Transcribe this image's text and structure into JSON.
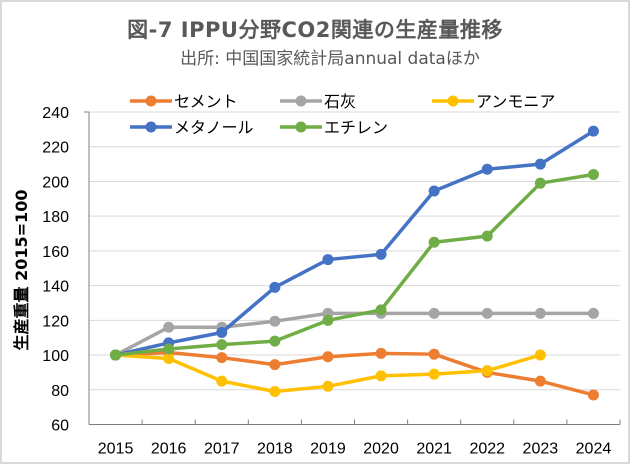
{
  "chart_data": {
    "type": "line",
    "title": "図-7  IPPU分野CO2関連の生産量推移",
    "subtitle": "出所: 中国国家統計局annual dataほか",
    "xlabel": "",
    "ylabel": "生産重量  2015=100",
    "x": [
      "2015",
      "2016",
      "2017",
      "2018",
      "2019",
      "2020",
      "2021",
      "2022",
      "2023",
      "2024"
    ],
    "ylim": [
      60,
      240
    ],
    "yticks": [
      "60",
      "80",
      "100",
      "120",
      "140",
      "160",
      "180",
      "200",
      "220",
      "240"
    ],
    "grid": true,
    "legend_position": "top",
    "series": [
      {
        "name": "セメント",
        "color": "#ED7D31",
        "values": [
          100,
          101.5,
          98.5,
          94.5,
          99,
          101,
          100.5,
          90,
          85,
          77
        ]
      },
      {
        "name": "石灰",
        "color": "#A5A5A5",
        "values": [
          100,
          116,
          116,
          119.5,
          124,
          124,
          124,
          124,
          124,
          124
        ]
      },
      {
        "name": "アンモニア",
        "color": "#FFC000",
        "values": [
          100,
          98,
          85,
          79,
          82,
          88,
          89,
          91,
          100,
          null
        ]
      },
      {
        "name": "メタノール",
        "color": "#4472C4",
        "values": [
          100,
          107,
          113,
          139,
          155,
          158,
          194.5,
          207,
          210,
          229
        ]
      },
      {
        "name": "エチレン",
        "color": "#70AD47",
        "values": [
          100,
          103.5,
          106,
          108,
          120,
          126,
          165,
          168.5,
          199,
          204
        ]
      }
    ]
  }
}
